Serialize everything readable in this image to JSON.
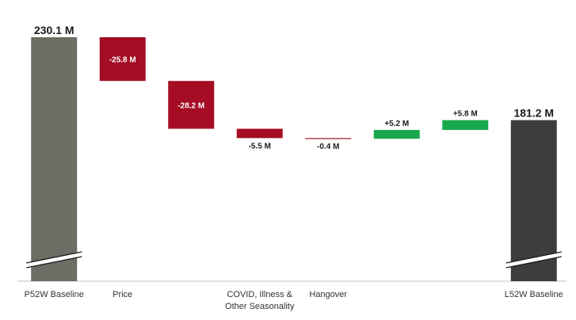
{
  "chart_data": {
    "type": "bar",
    "subtype": "waterfall",
    "title": "",
    "xlabel": "",
    "ylabel": "",
    "categories": [
      "P52W Baseline",
      "Price",
      "",
      "COVID, Illness & Other Seasonality",
      "Hangover",
      "",
      "",
      "L52W Baseline"
    ],
    "category_lines": [
      [
        "P52W Baseline"
      ],
      [
        "Price"
      ],
      [],
      [
        "COVID, Illness &",
        "Other Seasonality"
      ],
      [
        "Hangover"
      ],
      [],
      [],
      [
        "L52W Baseline"
      ]
    ],
    "values": [
      230.1,
      -25.8,
      -28.2,
      -5.5,
      -0.4,
      5.2,
      5.8,
      181.2
    ],
    "labels": [
      "230.1 M",
      "-25.8 M",
      "-28.2 M",
      "-5.5 M",
      "-0.4 M",
      "+5.2 M",
      "+5.8 M",
      "181.2 M"
    ],
    "kinds": [
      "total",
      "delta",
      "delta",
      "delta",
      "delta",
      "delta",
      "delta",
      "total"
    ],
    "y_axis": "broken",
    "grid": false,
    "legend": "none",
    "colors": {
      "start_total": "#6d6d66",
      "end_total": "#3d3d3d",
      "negative": "#a50d24",
      "positive": "#1aa84c",
      "axis": "#bfbfbf",
      "text": "#1a1a1a"
    }
  }
}
